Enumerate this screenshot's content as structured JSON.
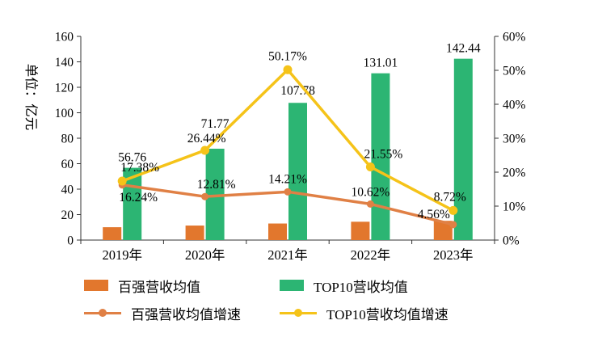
{
  "chart_data": {
    "type": "bar",
    "subtype": "combo-bar-line",
    "categories": [
      "2019年",
      "2020年",
      "2021年",
      "2022年",
      "2023年"
    ],
    "series": [
      {
        "name": "百强营收均值",
        "type": "bar",
        "axis": "left",
        "color": "#E2772D",
        "values": [
          10.1,
          11.4,
          13.0,
          14.4,
          15.1
        ],
        "show_labels": false
      },
      {
        "name": "TOP10营收均值",
        "type": "bar",
        "axis": "left",
        "color": "#2CB573",
        "values": [
          56.76,
          71.77,
          107.78,
          131.01,
          142.44
        ],
        "show_labels": true
      },
      {
        "name": "百强营收均值增速",
        "type": "line",
        "axis": "right",
        "color": "#E08045",
        "values": [
          16.24,
          12.81,
          14.21,
          10.62,
          4.56
        ],
        "show_labels": true
      },
      {
        "name": "TOP10营收均值增速",
        "type": "line",
        "axis": "right",
        "color": "#F5C319",
        "values": [
          17.38,
          26.44,
          50.17,
          21.55,
          8.72
        ],
        "show_labels": true
      }
    ],
    "left_axis": {
      "title": "单位：亿元",
      "min": 0,
      "max": 160,
      "step": 20
    },
    "right_axis": {
      "min": 0,
      "max": 60,
      "step": 10,
      "suffix": "%"
    },
    "grid": "off",
    "legend_position": "bottom"
  }
}
